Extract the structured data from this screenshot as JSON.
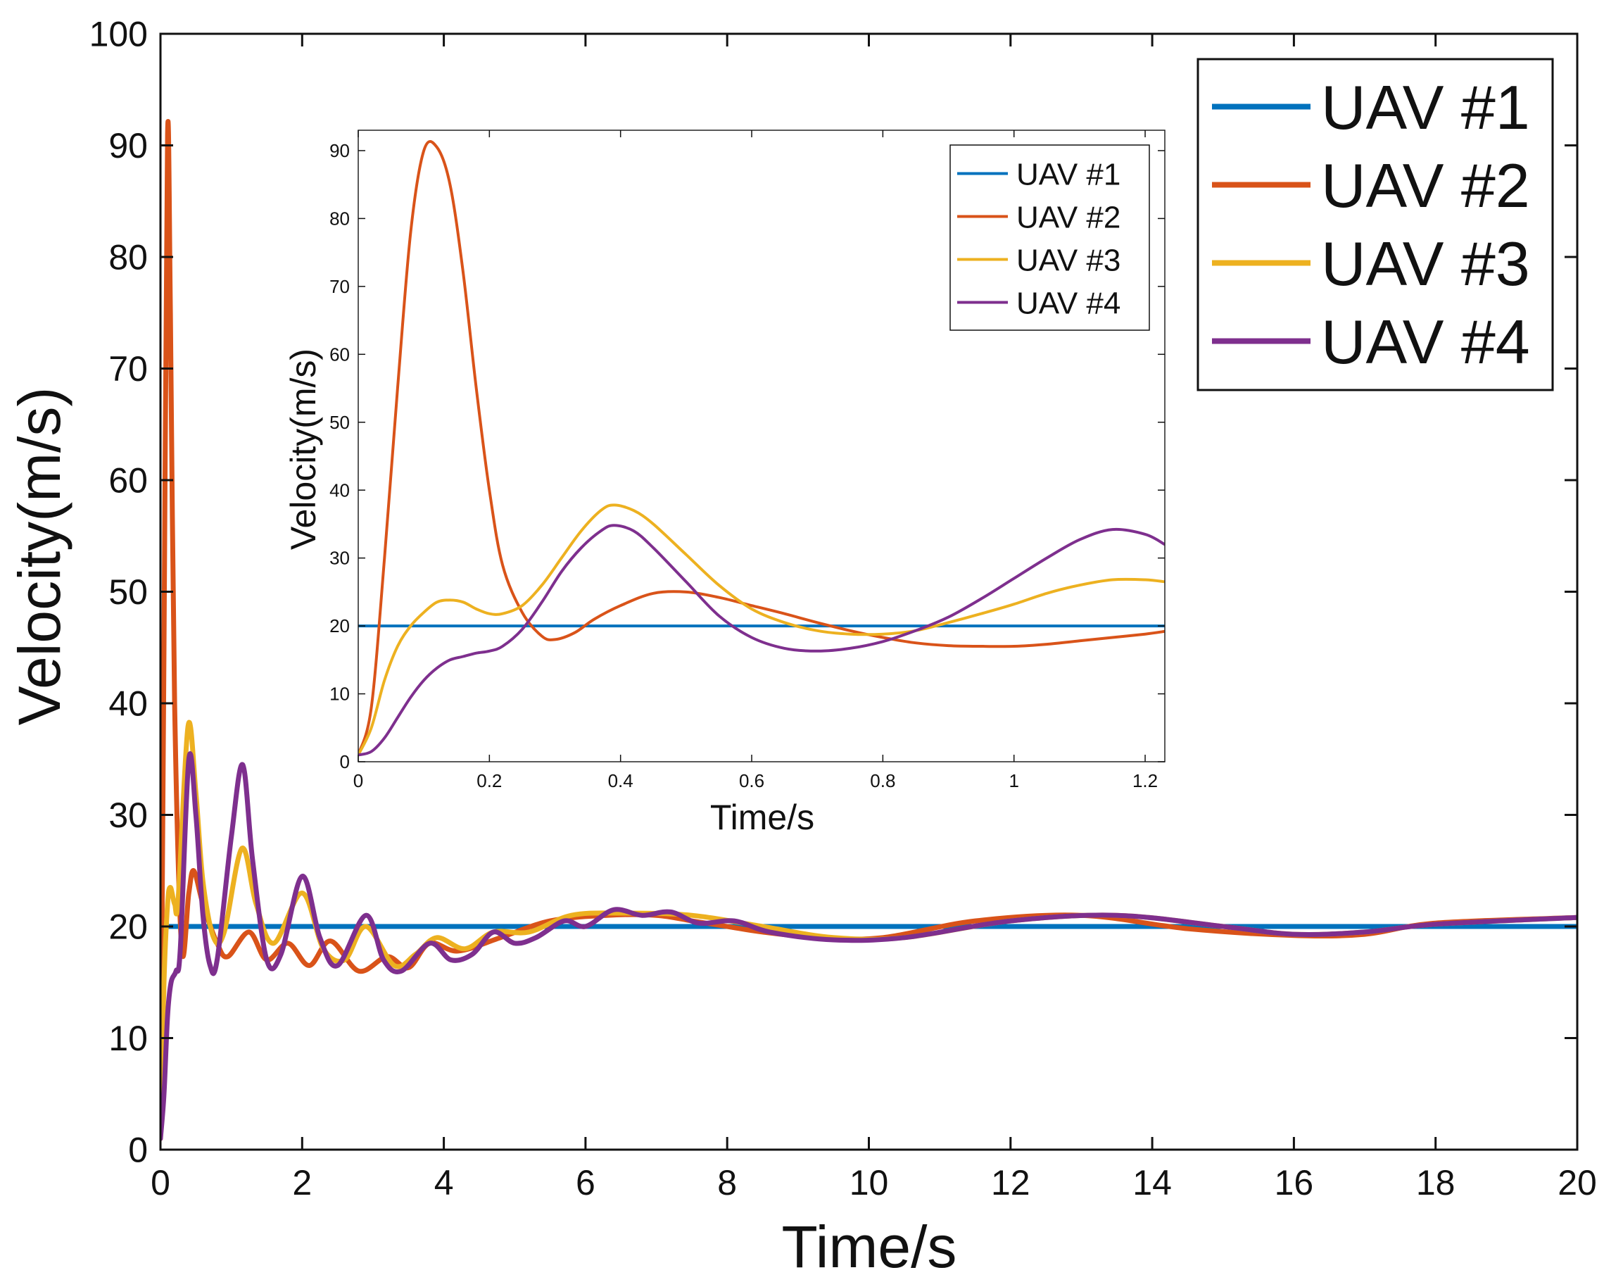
{
  "chart_data": [
    {
      "type": "line",
      "role": "main",
      "xlabel": "Time/s",
      "ylabel": "Velocity(m/s)",
      "xlim": [
        0,
        20
      ],
      "ylim": [
        0,
        100
      ],
      "xticks": [
        0,
        2,
        4,
        6,
        8,
        10,
        12,
        14,
        16,
        18,
        20
      ],
      "yticks": [
        0,
        10,
        20,
        30,
        40,
        50,
        60,
        70,
        80,
        90,
        100
      ],
      "grid": false,
      "legend": "top-right",
      "series": [
        {
          "name": "UAV #1",
          "color": "#0072BD",
          "points": [
            [
              0,
              20
            ],
            [
              20,
              20
            ]
          ]
        },
        {
          "name": "UAV #2",
          "color": "#D95319",
          "points": [
            [
              0,
              1
            ],
            [
              0.05,
              45
            ],
            [
              0.1,
              91
            ],
            [
              0.14,
              75
            ],
            [
              0.2,
              40
            ],
            [
              0.3,
              18
            ],
            [
              0.4,
              23
            ],
            [
              0.47,
              25
            ],
            [
              0.6,
              22
            ],
            [
              0.8,
              18.5
            ],
            [
              0.95,
              17.3
            ],
            [
              1.25,
              19.5
            ],
            [
              1.5,
              17
            ],
            [
              1.8,
              18.5
            ],
            [
              2.1,
              16.5
            ],
            [
              2.4,
              18.7
            ],
            [
              2.8,
              16
            ],
            [
              3.2,
              17.3
            ],
            [
              3.5,
              16.3
            ],
            [
              3.8,
              18.5
            ],
            [
              4.2,
              17.8
            ],
            [
              4.8,
              19
            ],
            [
              5.5,
              20.5
            ],
            [
              6.3,
              21
            ],
            [
              7,
              21
            ],
            [
              7.5,
              20.5
            ],
            [
              8,
              20
            ],
            [
              8.5,
              19.5
            ],
            [
              9.3,
              19
            ],
            [
              10.2,
              19
            ],
            [
              11.5,
              20.5
            ],
            [
              13,
              21
            ],
            [
              14.5,
              19.8
            ],
            [
              16,
              19.2
            ],
            [
              17,
              19.3
            ],
            [
              18,
              20.3
            ],
            [
              20,
              20.8
            ]
          ]
        },
        {
          "name": "UAV #3",
          "color": "#EDB120",
          "points": [
            [
              0,
              1
            ],
            [
              0.05,
              15
            ],
            [
              0.1,
              22
            ],
            [
              0.14,
              23.5
            ],
            [
              0.2,
              22
            ],
            [
              0.25,
              22.5
            ],
            [
              0.39,
              38
            ],
            [
              0.5,
              32
            ],
            [
              0.6,
              24
            ],
            [
              0.75,
              19
            ],
            [
              0.9,
              19.5
            ],
            [
              1.15,
              27
            ],
            [
              1.35,
              22
            ],
            [
              1.6,
              18.5
            ],
            [
              2.0,
              23
            ],
            [
              2.3,
              18
            ],
            [
              2.6,
              17
            ],
            [
              2.9,
              20
            ],
            [
              3.3,
              16.5
            ],
            [
              3.6,
              17.5
            ],
            [
              3.9,
              19
            ],
            [
              4.3,
              18
            ],
            [
              4.7,
              19.5
            ],
            [
              5.2,
              19.5
            ],
            [
              5.8,
              21
            ],
            [
              6.5,
              21.2
            ],
            [
              7.5,
              21
            ],
            [
              8.5,
              20
            ],
            [
              9.5,
              19
            ],
            [
              10.5,
              19
            ],
            [
              12,
              20.5
            ],
            [
              13.5,
              21
            ],
            [
              15,
              20
            ],
            [
              16,
              19.3
            ],
            [
              17,
              19.5
            ],
            [
              18,
              20.2
            ],
            [
              20,
              20.8
            ]
          ]
        },
        {
          "name": "UAV #4",
          "color": "#7E2F8E",
          "points": [
            [
              0,
              1
            ],
            [
              0.05,
              5
            ],
            [
              0.1,
              12
            ],
            [
              0.15,
              15
            ],
            [
              0.22,
              16
            ],
            [
              0.28,
              18
            ],
            [
              0.4,
              35
            ],
            [
              0.5,
              30
            ],
            [
              0.6,
              21
            ],
            [
              0.7,
              16.5
            ],
            [
              0.8,
              17
            ],
            [
              1.0,
              28
            ],
            [
              1.16,
              34.5
            ],
            [
              1.3,
              26
            ],
            [
              1.5,
              17
            ],
            [
              1.7,
              17.5
            ],
            [
              2.0,
              24.5
            ],
            [
              2.25,
              19
            ],
            [
              2.5,
              16.5
            ],
            [
              2.9,
              21
            ],
            [
              3.15,
              17
            ],
            [
              3.4,
              16
            ],
            [
              3.8,
              18.5
            ],
            [
              4.1,
              17
            ],
            [
              4.4,
              17.5
            ],
            [
              4.7,
              19.5
            ],
            [
              5.0,
              18.5
            ],
            [
              5.3,
              19
            ],
            [
              5.7,
              20.5
            ],
            [
              6.0,
              20
            ],
            [
              6.4,
              21.5
            ],
            [
              6.8,
              21
            ],
            [
              7.2,
              21.3
            ],
            [
              7.6,
              20.3
            ],
            [
              8.1,
              20.5
            ],
            [
              8.6,
              19.5
            ],
            [
              9.5,
              18.8
            ],
            [
              10.5,
              19
            ],
            [
              12,
              20.5
            ],
            [
              13.5,
              21
            ],
            [
              15,
              20
            ],
            [
              16,
              19.3
            ],
            [
              17,
              19.5
            ],
            [
              18,
              20.2
            ],
            [
              20,
              20.8
            ]
          ]
        }
      ]
    },
    {
      "type": "line",
      "role": "inset",
      "xlabel": "Time/s",
      "ylabel": "Velocity(m/s)",
      "xlim": [
        0,
        1.23
      ],
      "ylim": [
        0,
        93
      ],
      "xticks": [
        0,
        0.2,
        0.4,
        0.6,
        0.8,
        1,
        1.2
      ],
      "xtick_labels": [
        "0",
        "0.2",
        "0.4",
        "0.6",
        "0.8",
        "1",
        "1.2"
      ],
      "yticks": [
        0,
        10,
        20,
        30,
        40,
        50,
        60,
        70,
        80,
        90
      ],
      "grid": false,
      "legend": "top-right",
      "series": [
        {
          "name": "UAV #1",
          "color": "#0072BD",
          "points": [
            [
              0,
              20
            ],
            [
              1.23,
              20
            ]
          ]
        },
        {
          "name": "UAV #2",
          "color": "#D95319",
          "points": [
            [
              0,
              1
            ],
            [
              0.02,
              8
            ],
            [
              0.04,
              30
            ],
            [
              0.06,
              55
            ],
            [
              0.08,
              78
            ],
            [
              0.1,
              90
            ],
            [
              0.12,
              90.5
            ],
            [
              0.14,
              85
            ],
            [
              0.16,
              72
            ],
            [
              0.18,
              55
            ],
            [
              0.2,
              40
            ],
            [
              0.22,
              29
            ],
            [
              0.25,
              22
            ],
            [
              0.28,
              18.5
            ],
            [
              0.3,
              18
            ],
            [
              0.33,
              19
            ],
            [
              0.36,
              21
            ],
            [
              0.4,
              23
            ],
            [
              0.45,
              24.8
            ],
            [
              0.5,
              25
            ],
            [
              0.55,
              24.2
            ],
            [
              0.6,
              23
            ],
            [
              0.65,
              21.8
            ],
            [
              0.7,
              20.5
            ],
            [
              0.75,
              19.3
            ],
            [
              0.8,
              18.3
            ],
            [
              0.85,
              17.5
            ],
            [
              0.9,
              17.1
            ],
            [
              0.95,
              17
            ],
            [
              1.0,
              17
            ],
            [
              1.05,
              17.3
            ],
            [
              1.1,
              17.8
            ],
            [
              1.15,
              18.3
            ],
            [
              1.2,
              18.8
            ],
            [
              1.23,
              19.2
            ]
          ]
        },
        {
          "name": "UAV #3",
          "color": "#EDB120",
          "points": [
            [
              0,
              1
            ],
            [
              0.02,
              5
            ],
            [
              0.04,
              12
            ],
            [
              0.06,
              17
            ],
            [
              0.08,
              20
            ],
            [
              0.1,
              22
            ],
            [
              0.12,
              23.5
            ],
            [
              0.14,
              23.8
            ],
            [
              0.16,
              23.5
            ],
            [
              0.18,
              22.5
            ],
            [
              0.2,
              21.8
            ],
            [
              0.22,
              21.8
            ],
            [
              0.25,
              23
            ],
            [
              0.28,
              26
            ],
            [
              0.31,
              30
            ],
            [
              0.34,
              34
            ],
            [
              0.37,
              37
            ],
            [
              0.39,
              37.8
            ],
            [
              0.42,
              37
            ],
            [
              0.45,
              35
            ],
            [
              0.5,
              30.5
            ],
            [
              0.55,
              26
            ],
            [
              0.6,
              22.5
            ],
            [
              0.65,
              20.5
            ],
            [
              0.7,
              19.3
            ],
            [
              0.75,
              18.8
            ],
            [
              0.8,
              18.8
            ],
            [
              0.85,
              19.3
            ],
            [
              0.9,
              20.5
            ],
            [
              0.95,
              21.8
            ],
            [
              1.0,
              23.2
            ],
            [
              1.05,
              24.8
            ],
            [
              1.1,
              26
            ],
            [
              1.15,
              26.8
            ],
            [
              1.2,
              26.8
            ],
            [
              1.23,
              26.5
            ]
          ]
        },
        {
          "name": "UAV #4",
          "color": "#7E2F8E",
          "points": [
            [
              0,
              1
            ],
            [
              0.02,
              1.5
            ],
            [
              0.04,
              3.5
            ],
            [
              0.06,
              6.5
            ],
            [
              0.08,
              9.5
            ],
            [
              0.1,
              12
            ],
            [
              0.12,
              13.8
            ],
            [
              0.14,
              15
            ],
            [
              0.16,
              15.5
            ],
            [
              0.18,
              16
            ],
            [
              0.2,
              16.3
            ],
            [
              0.22,
              17
            ],
            [
              0.25,
              19.5
            ],
            [
              0.28,
              23.5
            ],
            [
              0.31,
              28
            ],
            [
              0.34,
              31.5
            ],
            [
              0.37,
              34
            ],
            [
              0.39,
              34.8
            ],
            [
              0.42,
              34
            ],
            [
              0.45,
              31.5
            ],
            [
              0.5,
              26.5
            ],
            [
              0.55,
              21.5
            ],
            [
              0.6,
              18.3
            ],
            [
              0.65,
              16.7
            ],
            [
              0.7,
              16.3
            ],
            [
              0.75,
              16.7
            ],
            [
              0.8,
              17.7
            ],
            [
              0.85,
              19.3
            ],
            [
              0.9,
              21.3
            ],
            [
              0.95,
              24
            ],
            [
              1.0,
              27
            ],
            [
              1.05,
              30
            ],
            [
              1.1,
              32.7
            ],
            [
              1.15,
              34.2
            ],
            [
              1.2,
              33.5
            ],
            [
              1.23,
              32
            ]
          ]
        }
      ]
    }
  ]
}
